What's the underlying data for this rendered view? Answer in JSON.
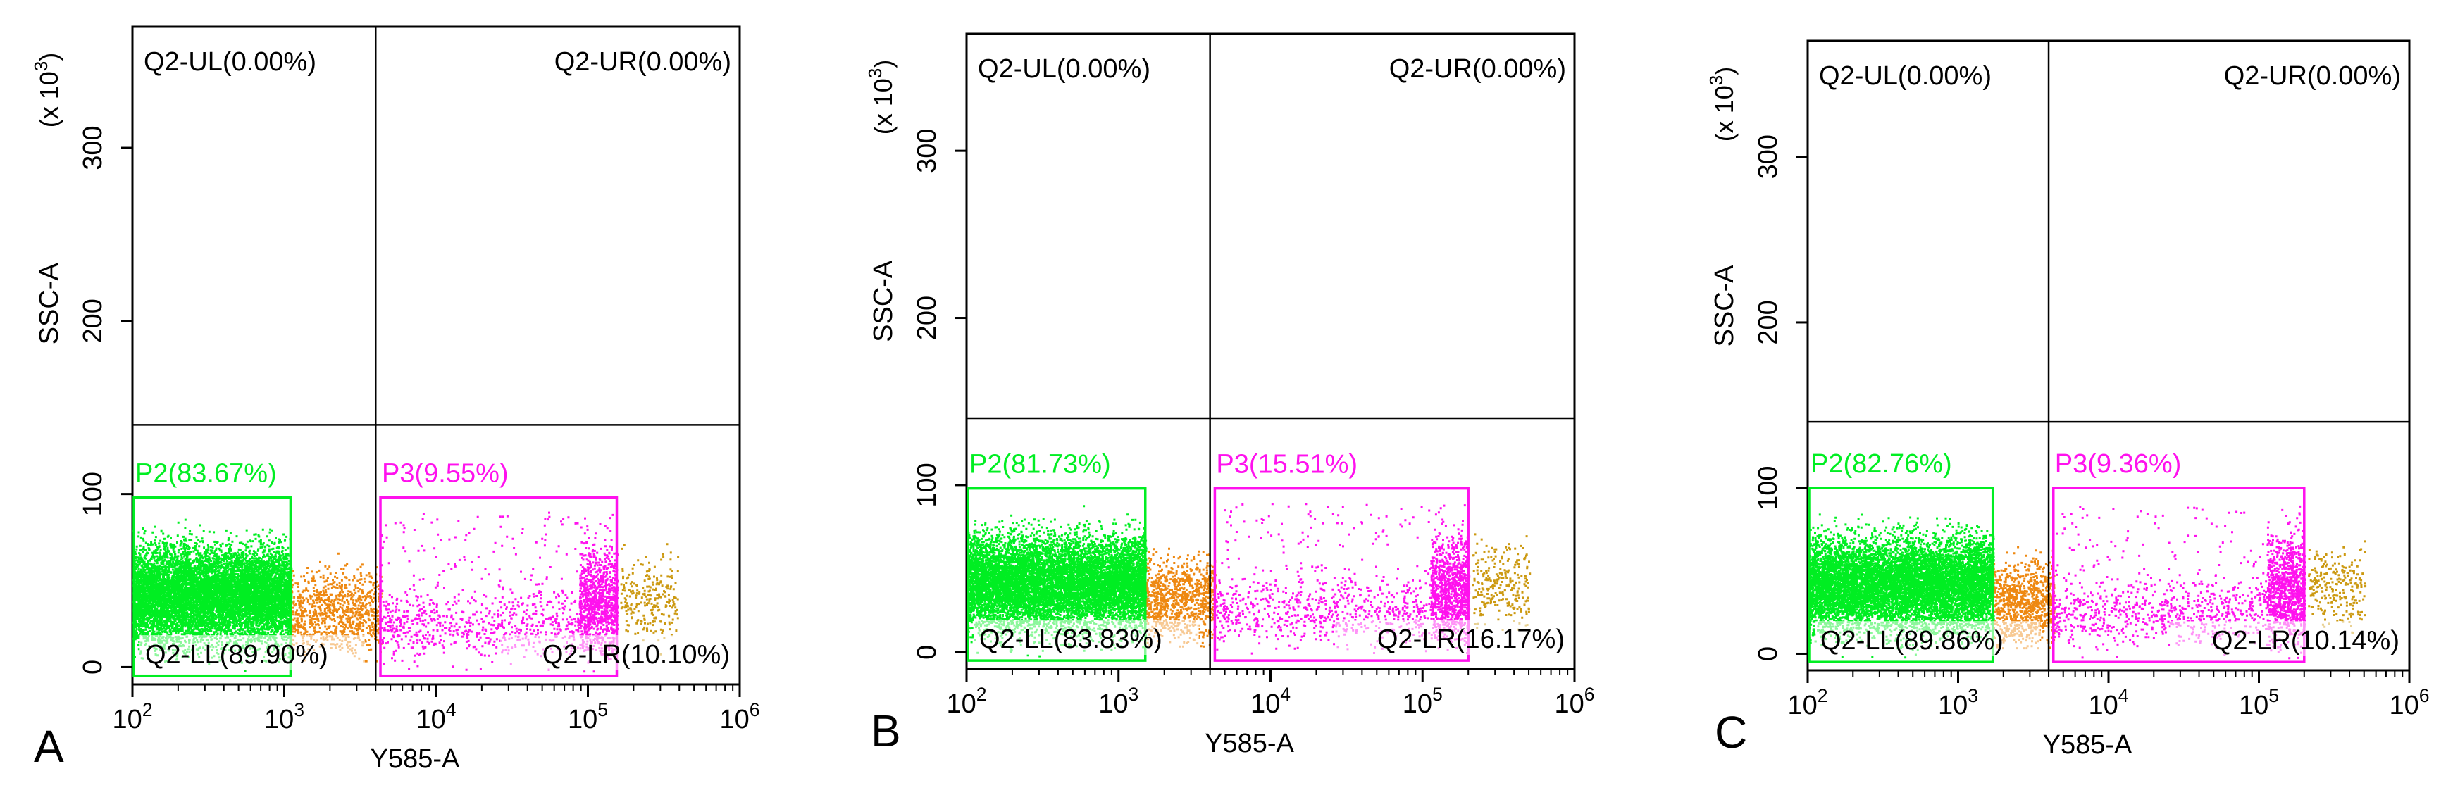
{
  "figure": {
    "panel_letters": [
      "A",
      "B",
      "C"
    ]
  },
  "colors": {
    "p2": "#00ee22",
    "p3": "#ff11ee",
    "outside": "#ee8811",
    "outside_high": "#cc9911",
    "axis": "#000000",
    "quadrant_text": "#000000"
  },
  "chart_data": [
    {
      "type": "scatter",
      "panel": "A",
      "xlabel": "Y585-A",
      "ylabel": "SSC-A",
      "y_multiplier": "(x 10^3)",
      "x_scale": "log",
      "xlim": [
        100,
        1000000
      ],
      "ylim": [
        -10,
        370
      ],
      "x_ticks": [
        {
          "value": 100,
          "label": "10^2"
        },
        {
          "value": 1000,
          "label": "10^3"
        },
        {
          "value": 10000,
          "label": "10^4"
        },
        {
          "value": 100000,
          "label": "10^5"
        },
        {
          "value": 1000000,
          "label": "10^6"
        }
      ],
      "y_ticks": [
        0,
        100,
        200,
        300
      ],
      "quadrant_divider": {
        "x": 4000,
        "y": 140
      },
      "quadrants": {
        "UL": "Q2-UL(0.00%)",
        "UR": "Q2-UR(0.00%)",
        "LL": "Q2-LL(89.90%)",
        "LR": "Q2-LR(10.10%)"
      },
      "gates": [
        {
          "name": "P2",
          "label": "P2(83.67%)",
          "percent": 83.67,
          "x_range": [
            100,
            1100
          ],
          "y_range": [
            -5,
            98
          ]
        },
        {
          "name": "P3",
          "label": "P3(9.55%)",
          "percent": 9.55,
          "x_range": [
            4300,
            155000
          ],
          "y_range": [
            -5,
            98
          ]
        }
      ]
    },
    {
      "type": "scatter",
      "panel": "B",
      "xlabel": "Y585-A",
      "ylabel": "SSC-A",
      "y_multiplier": "(x 10^3)",
      "x_scale": "log",
      "xlim": [
        100,
        1000000
      ],
      "ylim": [
        -10,
        370
      ],
      "x_ticks": [
        {
          "value": 100,
          "label": "10^2"
        },
        {
          "value": 1000,
          "label": "10^3"
        },
        {
          "value": 10000,
          "label": "10^4"
        },
        {
          "value": 100000,
          "label": "10^5"
        },
        {
          "value": 1000000,
          "label": "10^6"
        }
      ],
      "y_ticks": [
        0,
        100,
        200,
        300
      ],
      "quadrant_divider": {
        "x": 4000,
        "y": 140
      },
      "quadrants": {
        "UL": "Q2-UL(0.00%)",
        "UR": "Q2-UR(0.00%)",
        "LL": "Q2-LL(83.83%)",
        "LR": "Q2-LR(16.17%)"
      },
      "gates": [
        {
          "name": "P2",
          "label": "P2(81.73%)",
          "percent": 81.73,
          "x_range": [
            100,
            1500
          ],
          "y_range": [
            -5,
            98
          ]
        },
        {
          "name": "P3",
          "label": "P3(15.51%)",
          "percent": 15.51,
          "x_range": [
            4300,
            200000
          ],
          "y_range": [
            -5,
            98
          ]
        }
      ]
    },
    {
      "type": "scatter",
      "panel": "C",
      "xlabel": "Y585-A",
      "ylabel": "SSC-A",
      "y_multiplier": "(x 10^3)",
      "x_scale": "log",
      "xlim": [
        100,
        1000000
      ],
      "ylim": [
        -10,
        370
      ],
      "x_ticks": [
        {
          "value": 100,
          "label": "10^2"
        },
        {
          "value": 1000,
          "label": "10^3"
        },
        {
          "value": 10000,
          "label": "10^4"
        },
        {
          "value": 100000,
          "label": "10^5"
        },
        {
          "value": 1000000,
          "label": "10^6"
        }
      ],
      "y_ticks": [
        0,
        100,
        200,
        300
      ],
      "quadrant_divider": {
        "x": 4000,
        "y": 140
      },
      "quadrants": {
        "UL": "Q2-UL(0.00%)",
        "UR": "Q2-UR(0.00%)",
        "LL": "Q2-LL(89.86%)",
        "LR": "Q2-LR(10.14%)"
      },
      "gates": [
        {
          "name": "P2",
          "label": "P2(82.76%)",
          "percent": 82.76,
          "x_range": [
            100,
            1700
          ],
          "y_range": [
            -5,
            100
          ]
        },
        {
          "name": "P3",
          "label": "P3(9.36%)",
          "percent": 9.36,
          "x_range": [
            4300,
            200000
          ],
          "y_range": [
            -5,
            100
          ]
        }
      ]
    }
  ]
}
